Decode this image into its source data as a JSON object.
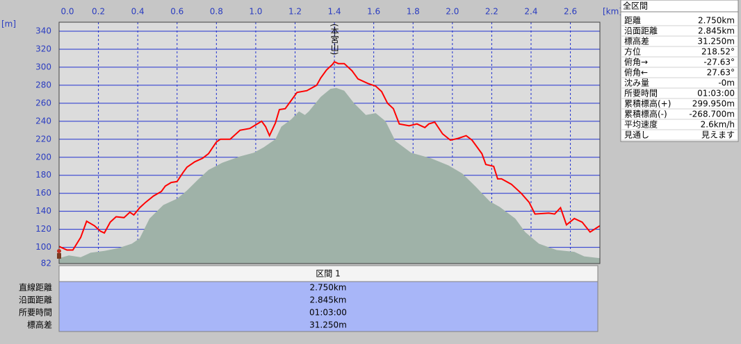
{
  "chart_data": {
    "type": "profile",
    "xlabel": "[km]",
    "ylabel": "[m]",
    "xlim": [
      0,
      2.75
    ],
    "ylim": [
      82,
      350
    ],
    "xticks": [
      {
        "value": 0,
        "label": "0.0"
      },
      0.2,
      0.4,
      0.6,
      0.8,
      {
        "value": 1,
        "label": "1.0"
      },
      1.2,
      1.4,
      1.6,
      1.8,
      {
        "value": 2,
        "label": "2.0"
      },
      2.2,
      2.4,
      2.6
    ],
    "yticks": [
      82,
      100,
      120,
      140,
      160,
      180,
      200,
      220,
      240,
      260,
      280,
      300,
      320,
      340
    ],
    "grid": true,
    "annotations": [
      {
        "text": "(本宮山)",
        "x": 1.4
      }
    ],
    "series": [
      {
        "color": "#9fb2a8",
        "fill": true,
        "x": [
          0,
          0.05,
          0.11,
          0.16,
          0.23,
          0.3,
          0.37,
          0.41,
          0.46,
          0.53,
          0.6,
          0.65,
          0.71,
          0.76,
          0.83,
          0.92,
          0.99,
          1.04,
          1.1,
          1.13,
          1.18,
          1.22,
          1.25,
          1.27,
          1.33,
          1.38,
          1.41,
          1.45,
          1.5,
          1.56,
          1.61,
          1.66,
          1.71,
          1.79,
          1.89,
          1.98,
          2.05,
          2.12,
          2.19,
          2.24,
          2.32,
          2.37,
          2.44,
          2.53,
          2.62,
          2.67,
          2.75
        ],
        "values": [
          88,
          91,
          89,
          94,
          96,
          99,
          104,
          110,
          132,
          147,
          154,
          163,
          176,
          186,
          194,
          201,
          205,
          211,
          220,
          234,
          242,
          251,
          247,
          251,
          267,
          276,
          277,
          274,
          260,
          247,
          249,
          240,
          218,
          205,
          199,
          191,
          182,
          167,
          151,
          145,
          132,
          117,
          104,
          97,
          95,
          90,
          88
        ]
      },
      {
        "color": "#ff0000",
        "fill": false,
        "x": [
          0,
          0.04,
          0.07,
          0.11,
          0.14,
          0.18,
          0.21,
          0.23,
          0.26,
          0.29,
          0.33,
          0.36,
          0.38,
          0.41,
          0.44,
          0.48,
          0.52,
          0.54,
          0.57,
          0.6,
          0.63,
          0.65,
          0.69,
          0.73,
          0.76,
          0.8,
          0.82,
          0.87,
          0.92,
          0.97,
          1.0,
          1.03,
          1.05,
          1.07,
          1.1,
          1.12,
          1.15,
          1.18,
          1.21,
          1.26,
          1.31,
          1.33,
          1.36,
          1.39,
          1.4,
          1.42,
          1.45,
          1.49,
          1.52,
          1.57,
          1.61,
          1.64,
          1.67,
          1.7,
          1.73,
          1.78,
          1.82,
          1.86,
          1.88,
          1.91,
          1.95,
          1.99,
          2.03,
          2.07,
          2.1,
          2.15,
          2.17,
          2.21,
          2.23,
          2.25,
          2.3,
          2.35,
          2.39,
          2.42,
          2.49,
          2.52,
          2.55,
          2.58,
          2.62,
          2.66,
          2.7,
          2.75
        ],
        "values": [
          101,
          97,
          97,
          111,
          129,
          124,
          118,
          116,
          128,
          134,
          133,
          139,
          136,
          144,
          150,
          157,
          162,
          168,
          172,
          173,
          183,
          189,
          195,
          199,
          204,
          217,
          220,
          220,
          230,
          232,
          236,
          240,
          234,
          224,
          238,
          253,
          254,
          263,
          272,
          274,
          280,
          288,
          297,
          303,
          306,
          304,
          304,
          296,
          287,
          282,
          279,
          273,
          260,
          254,
          237,
          235,
          237,
          233,
          237,
          239,
          226,
          219,
          221,
          224,
          219,
          204,
          192,
          190,
          176,
          176,
          170,
          160,
          150,
          137,
          138,
          137,
          144,
          125,
          132,
          128,
          117,
          124
        ]
      }
    ]
  },
  "summary": {
    "title": "全区間",
    "rows": [
      [
        "距離",
        "2.750km"
      ],
      [
        "沿面距離",
        "2.845km"
      ],
      [
        "標高差",
        "31.250m"
      ],
      [
        "方位",
        "218.52°"
      ],
      [
        "俯角→",
        "-27.63°"
      ],
      [
        "俯角←",
        "27.63°"
      ],
      [
        "沈み量",
        "-0m"
      ],
      [
        "所要時間",
        "01:03:00"
      ],
      [
        "累積標高(+)",
        "299.950m"
      ],
      [
        "累積標高(-)",
        "-268.700m"
      ],
      [
        "平均速度",
        "2.6km/h"
      ],
      [
        "見通し",
        "見えます"
      ]
    ]
  },
  "section": {
    "title": "区間 1",
    "rows": [
      [
        "直線距離",
        "2.750km"
      ],
      [
        "沿面距離",
        "2.845km"
      ],
      [
        "所要時間",
        "01:03:00"
      ],
      [
        "標高差",
        "31.250m"
      ]
    ]
  }
}
